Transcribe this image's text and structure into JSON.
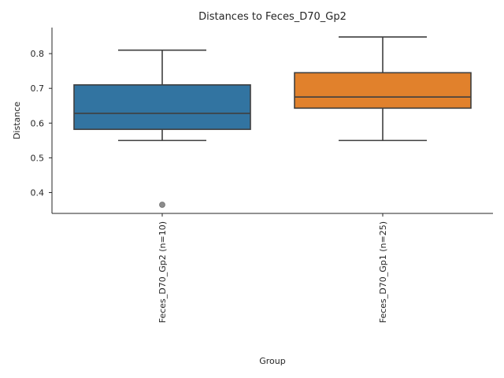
{
  "chart_data": {
    "type": "box",
    "title": "Distances to Feces_D70_Gp2",
    "xlabel": "Group",
    "ylabel": "Distance",
    "ylim": [
      0.34,
      0.875
    ],
    "yticks": [
      "0.4",
      "0.5",
      "0.6",
      "0.7",
      "0.8"
    ],
    "grid": false,
    "series": [
      {
        "name": "Feces_D70_Gp2 (n=10)",
        "color": "#3274a1",
        "whisker_low": 0.55,
        "q1": 0.582,
        "median": 0.628,
        "q3": 0.71,
        "whisker_high": 0.81,
        "outliers": [
          0.365
        ]
      },
      {
        "name": "Feces_D70_Gp1 (n=25)",
        "color": "#e1812c",
        "whisker_low": 0.55,
        "q1": 0.643,
        "median": 0.675,
        "q3": 0.745,
        "whisker_high": 0.848,
        "outliers": []
      }
    ]
  }
}
